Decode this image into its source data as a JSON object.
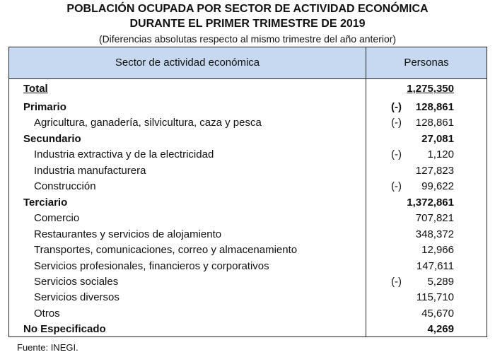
{
  "header": {
    "title": [
      "POBLACIÓN OCUPADA POR SECTOR DE ACTIVIDAD ECONÓMICA",
      "DURANTE EL PRIMER TRIMESTRE DE 2019"
    ],
    "subtitle": "(Diferencias absolutas respecto al mismo trimestre del año anterior)"
  },
  "table": {
    "columns": [
      "Sector de actividad económica",
      "Personas"
    ],
    "total": {
      "label": "Total",
      "value": "1,275,350"
    },
    "sectors": [
      {
        "label": "Primario",
        "sign": "(-)",
        "value": "128,861",
        "items": [
          {
            "label": "Agricultura, ganadería, silvicultura, caza y pesca",
            "sign": "(-)",
            "value": "128,861"
          }
        ]
      },
      {
        "label": "Secundario",
        "value": "27,081",
        "items": [
          {
            "label": "Industria extractiva y de la electricidad",
            "sign": "(-)",
            "value": "1,120"
          },
          {
            "label": "Industria manufacturera",
            "value": "127,823"
          },
          {
            "label": "Construcción",
            "sign": "(-)",
            "value": "99,622"
          }
        ]
      },
      {
        "label": "Terciario",
        "value": "1,372,861",
        "items": [
          {
            "label": "Comercio",
            "value": "707,821"
          },
          {
            "label": "Restaurantes y servicios de alojamiento",
            "value": "348,372"
          },
          {
            "label": "Transportes, comunicaciones, correo y almacenamiento",
            "value": "12,966"
          },
          {
            "label": "Servicios profesionales, financieros y corporativos",
            "value": "147,611"
          },
          {
            "label": "Servicios sociales",
            "sign": "(-)",
            "value": "5,289"
          },
          {
            "label": "Servicios diversos",
            "value": "115,710"
          },
          {
            "label": "Otros",
            "value": "45,670"
          }
        ]
      },
      {
        "label": "No Especificado",
        "value": "4,269",
        "items": []
      }
    ]
  },
  "footer": "Fuente: INEGI."
}
